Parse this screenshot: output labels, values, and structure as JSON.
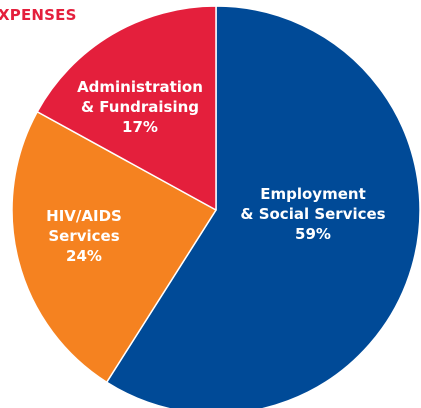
{
  "chart_data": {
    "type": "pie",
    "title": "XPENSES",
    "slices": [
      {
        "label_lines": [
          "Employment",
          "& Social Services"
        ],
        "value": 59,
        "value_label": "59%",
        "color": "#004a97"
      },
      {
        "label_lines": [
          "HIV/AIDS",
          "Services"
        ],
        "value": 24,
        "value_label": "24%",
        "color": "#f58220"
      },
      {
        "label_lines": [
          "Administration",
          "& Fundraising"
        ],
        "value": 17,
        "value_label": "17%",
        "color": "#e41f3c"
      }
    ]
  }
}
